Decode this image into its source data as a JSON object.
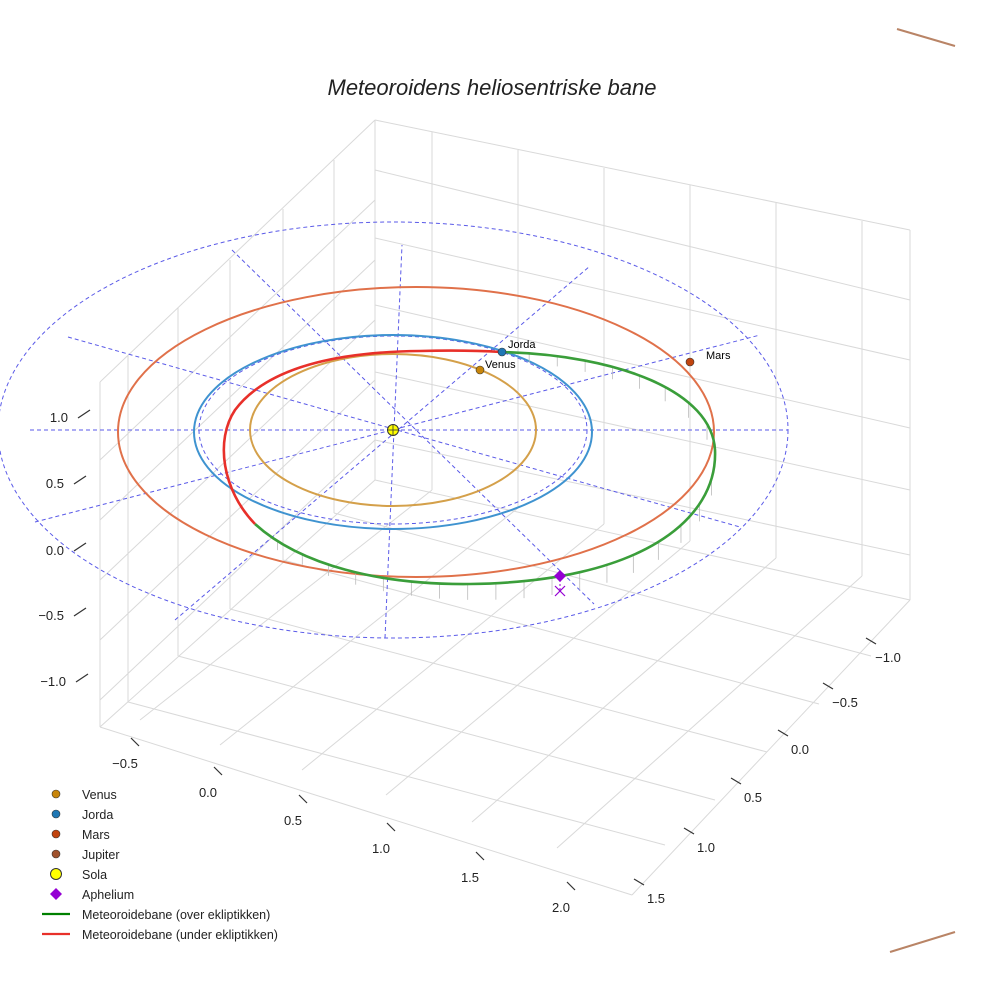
{
  "chart_data": {
    "type": "line3d",
    "title": "Meteoroidens heliosentriske bane",
    "x_ticks": [
      "−0.5",
      "0.0",
      "0.5",
      "1.0",
      "1.5",
      "2.0"
    ],
    "y_ticks": [
      "−1.0",
      "−0.5",
      "0.0",
      "0.5",
      "1.0",
      "1.5"
    ],
    "z_ticks": [
      "1.0",
      "0.5",
      "0.0",
      "−0.5",
      "−1.0"
    ],
    "grid": true,
    "legend_position": "bottom-left",
    "planets": [
      {
        "name": "Venus",
        "label": "Venus",
        "orbit_radius_au": 0.72,
        "color": "#D4A04A",
        "marker_color": "#C8860B"
      },
      {
        "name": "Jorda",
        "label": "Jorda",
        "orbit_radius_au": 1.0,
        "color": "#3F93D0",
        "marker_color": "#1F77B4"
      },
      {
        "name": "Mars",
        "label": "Mars",
        "orbit_radius_au": 1.52,
        "color": "#E0714A",
        "marker_color": "#C1440E"
      }
    ],
    "sun": {
      "name": "Sola",
      "color": "#FFFF00"
    },
    "aphelion": {
      "name": "Aphelium",
      "color": "#9400D3"
    },
    "ecliptic_reference_color": "#5A5AE8",
    "meteoroid_above_color": "#2E9E2E",
    "meteoroid_below_color": "#E8302A",
    "legend": [
      {
        "label": "Venus",
        "symbol": "dot",
        "color": "#C8860B"
      },
      {
        "label": "Jorda",
        "symbol": "dot",
        "color": "#1F77B4"
      },
      {
        "label": "Mars",
        "symbol": "dot",
        "color": "#C1440E"
      },
      {
        "label": "Jupiter",
        "symbol": "dot",
        "color": "#A0522D"
      },
      {
        "label": "Sola",
        "symbol": "sun",
        "color": "#FFFF00"
      },
      {
        "label": "Aphelium",
        "symbol": "diamond",
        "color": "#9400D3"
      },
      {
        "label": "Meteoroidebane (over ekliptikken)",
        "symbol": "line",
        "color": "#008000"
      },
      {
        "label": "Meteoroidebane (under ekliptikken)",
        "symbol": "line",
        "color": "#E8302A"
      }
    ],
    "jupiter_orbit_color": "#B98466"
  }
}
